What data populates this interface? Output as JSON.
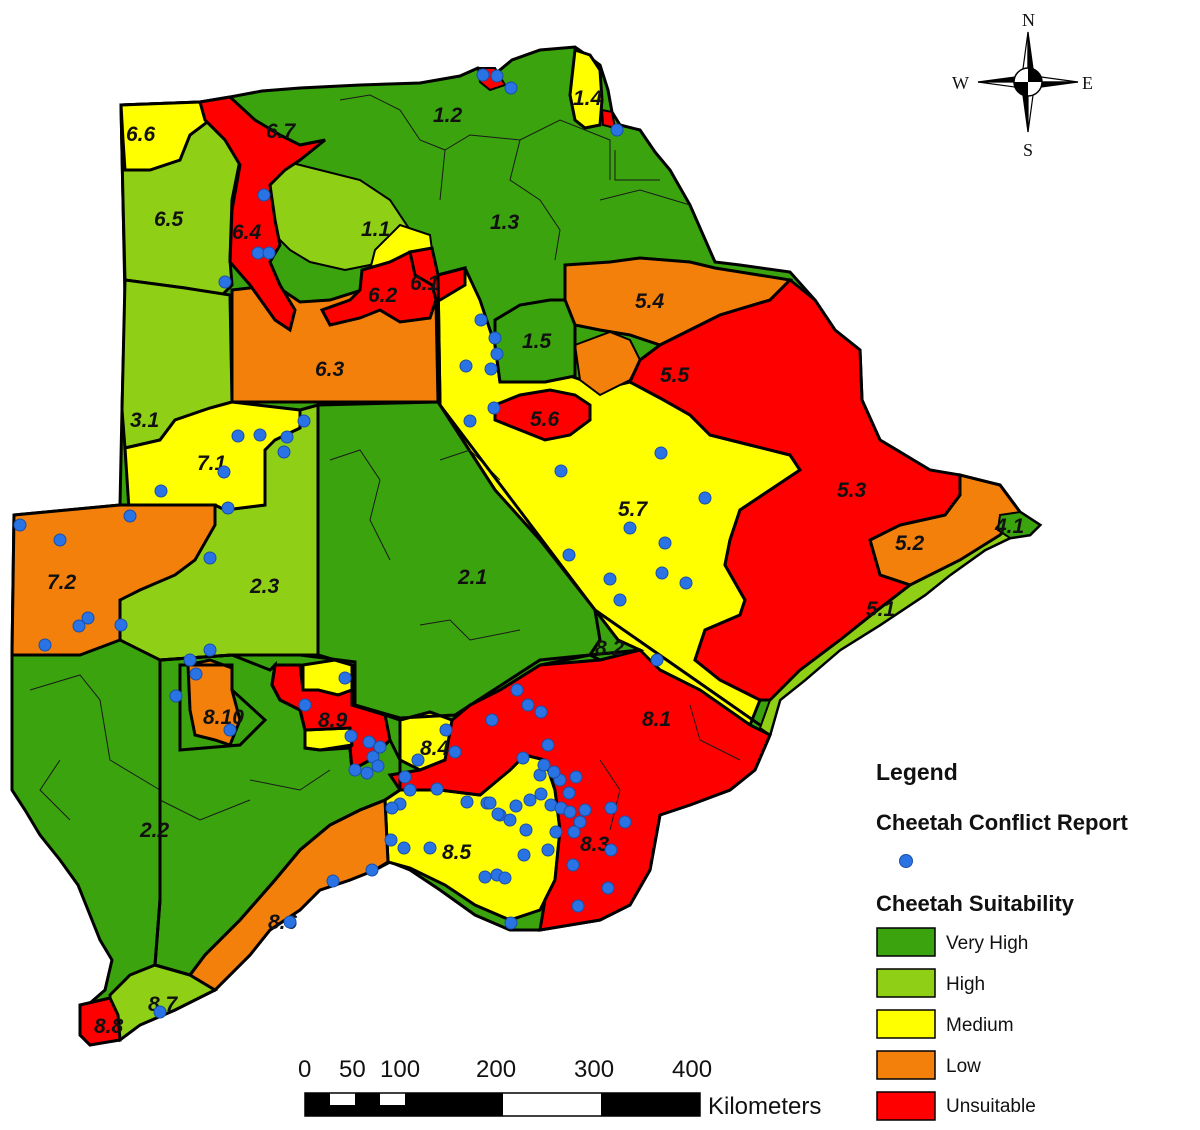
{
  "colors": {
    "very_high": "#3aa30e",
    "high": "#8fd016",
    "medium": "#ffff00",
    "low": "#f4800c",
    "unsuitable": "#ff0000",
    "point": "#2a73e4",
    "boundary": "#000000"
  },
  "compass": {
    "n": "N",
    "s": "S",
    "e": "E",
    "w": "W"
  },
  "zone_labels": [
    {
      "id": "1.1",
      "text": "1.1"
    },
    {
      "id": "1.2",
      "text": "1.2"
    },
    {
      "id": "1.3",
      "text": "1.3"
    },
    {
      "id": "1.4",
      "text": "1.4"
    },
    {
      "id": "1.5",
      "text": "1.5"
    },
    {
      "id": "2.1",
      "text": "2.1"
    },
    {
      "id": "2.2",
      "text": "2.2"
    },
    {
      "id": "2.3",
      "text": "2.3"
    },
    {
      "id": "3.1",
      "text": "3.1"
    },
    {
      "id": "4.1",
      "text": "4.1"
    },
    {
      "id": "5.1",
      "text": "5.1"
    },
    {
      "id": "5.2",
      "text": "5.2"
    },
    {
      "id": "5.3",
      "text": "5.3"
    },
    {
      "id": "5.4",
      "text": "5.4"
    },
    {
      "id": "5.5",
      "text": "5.5"
    },
    {
      "id": "5.6",
      "text": "5.6"
    },
    {
      "id": "5.7",
      "text": "5.7"
    },
    {
      "id": "6.1",
      "text": "6.1"
    },
    {
      "id": "6.2",
      "text": "6.2"
    },
    {
      "id": "6.3",
      "text": "6.3"
    },
    {
      "id": "6.4",
      "text": "6.4"
    },
    {
      "id": "6.5",
      "text": "6.5"
    },
    {
      "id": "6.6",
      "text": "6.6"
    },
    {
      "id": "6.7",
      "text": "6.7"
    },
    {
      "id": "7.1",
      "text": "7.1"
    },
    {
      "id": "7.2",
      "text": "7.2"
    },
    {
      "id": "8.1",
      "text": "8.1"
    },
    {
      "id": "8.2",
      "text": "8.2"
    },
    {
      "id": "8.3",
      "text": "8.3"
    },
    {
      "id": "8.4",
      "text": "8.4"
    },
    {
      "id": "8.5",
      "text": "8.5"
    },
    {
      "id": "8.6",
      "text": "8.6"
    },
    {
      "id": "8.7",
      "text": "8.7"
    },
    {
      "id": "8.8",
      "text": "8.8"
    },
    {
      "id": "8.9",
      "text": "8.9"
    },
    {
      "id": "8.10",
      "text": "8.10"
    }
  ],
  "legend": {
    "title": "Legend",
    "points_heading": "Cheetah Conflict Report",
    "suitability_heading": "Cheetah Suitability",
    "classes": [
      {
        "label": "Very High",
        "color": "#3aa30e"
      },
      {
        "label": "High",
        "color": "#8fd016"
      },
      {
        "label": "Medium",
        "color": "#ffff00"
      },
      {
        "label": "Low",
        "color": "#f4800c"
      },
      {
        "label": "Unsuitable",
        "color": "#ff0000"
      }
    ]
  },
  "scale_bar": {
    "ticks": [
      "0",
      "50",
      "100",
      "200",
      "300",
      "400"
    ],
    "unit": "Kilometers"
  }
}
